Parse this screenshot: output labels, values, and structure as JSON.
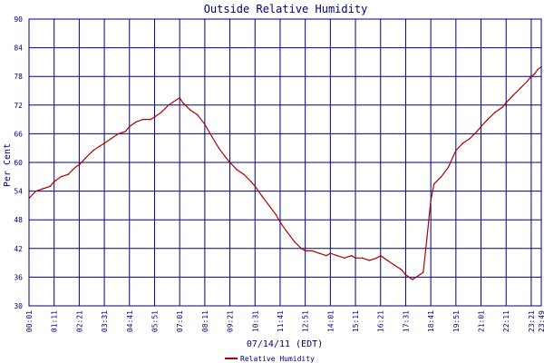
{
  "chart_data": {
    "type": "line",
    "title": "Outside Relative Humidity",
    "ylabel": "Per Cent",
    "xlabel": "07/14/11 (EDT)",
    "ylim": [
      30,
      90
    ],
    "yticks": [
      30,
      36,
      42,
      48,
      54,
      60,
      66,
      72,
      78,
      84,
      90
    ],
    "xticks": [
      "00:01",
      "01:11",
      "02:21",
      "03:31",
      "04:41",
      "05:51",
      "07:01",
      "08:11",
      "09:21",
      "10:31",
      "11:41",
      "12:51",
      "14:01",
      "15:11",
      "16:21",
      "17:31",
      "18:41",
      "19:51",
      "21:01",
      "22:11",
      "23:21",
      "23:49"
    ],
    "grid": true,
    "legend_position": "bottom-center",
    "colors": {
      "series": "#b00000",
      "axes": "#000080",
      "background": "#ffffff"
    },
    "series": [
      {
        "name": "Relative Humidity",
        "x": [
          "00:01",
          "00:20",
          "00:40",
          "01:00",
          "01:11",
          "01:30",
          "01:50",
          "02:10",
          "02:21",
          "02:40",
          "03:00",
          "03:20",
          "03:31",
          "03:50",
          "04:10",
          "04:30",
          "04:41",
          "05:00",
          "05:20",
          "05:40",
          "05:51",
          "06:10",
          "06:30",
          "06:50",
          "07:01",
          "07:10",
          "07:30",
          "07:50",
          "08:11",
          "08:30",
          "08:50",
          "09:10",
          "09:21",
          "09:40",
          "10:00",
          "10:20",
          "10:31",
          "10:50",
          "11:10",
          "11:30",
          "11:41",
          "12:00",
          "12:20",
          "12:40",
          "12:51",
          "13:10",
          "13:30",
          "13:50",
          "14:01",
          "14:20",
          "14:40",
          "15:00",
          "15:11",
          "15:30",
          "15:50",
          "16:10",
          "16:21",
          "16:40",
          "17:00",
          "17:20",
          "17:31",
          "17:50",
          "18:10",
          "18:20",
          "18:30",
          "18:41",
          "18:50",
          "19:10",
          "19:30",
          "19:51",
          "20:10",
          "20:30",
          "20:50",
          "21:01",
          "21:20",
          "21:40",
          "22:00",
          "22:11",
          "22:30",
          "22:50",
          "23:10",
          "23:21",
          "23:30",
          "23:40",
          "23:49"
        ],
        "values": [
          52.5,
          54,
          54.5,
          55,
          56,
          57,
          57.5,
          59,
          59.5,
          61,
          62.5,
          63.5,
          64,
          65,
          66,
          66.5,
          67.5,
          68.5,
          69,
          69,
          69.5,
          70.5,
          72,
          73,
          73.5,
          72.5,
          71,
          70,
          68,
          65.5,
          63,
          61,
          60,
          58.5,
          57.5,
          56,
          55,
          53,
          51,
          49,
          47.5,
          45.5,
          43.5,
          42,
          41.5,
          41.5,
          41,
          40.5,
          41,
          40.5,
          40,
          40.5,
          40,
          40,
          39.5,
          40,
          40.5,
          39.5,
          38.5,
          37.5,
          36.5,
          35.5,
          36.5,
          37,
          44,
          52,
          55.5,
          57,
          59,
          62.5,
          64,
          65,
          66.5,
          67.5,
          69,
          70.5,
          71.5,
          72.5,
          74,
          75.5,
          77,
          78,
          78.5,
          79.5,
          80
        ]
      }
    ]
  }
}
